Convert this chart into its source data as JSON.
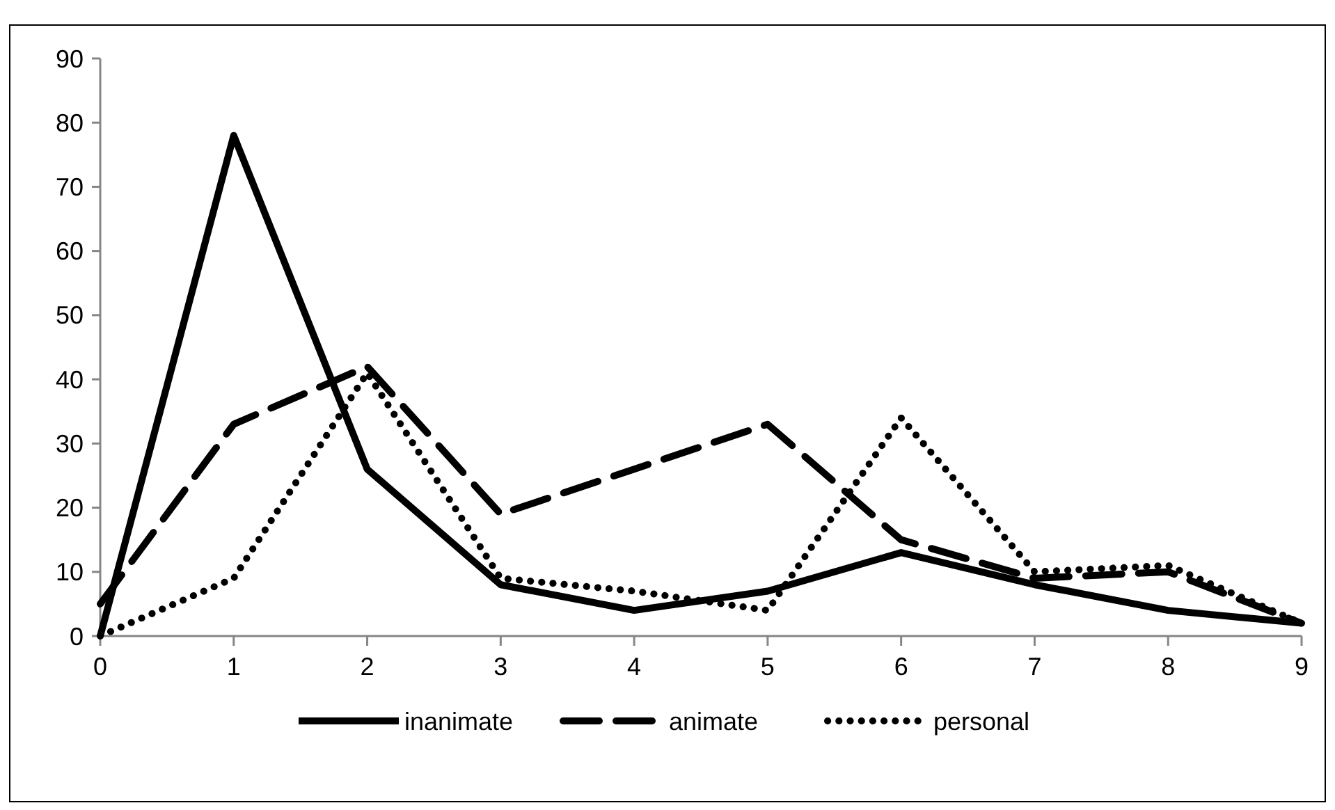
{
  "chart_data": {
    "type": "line",
    "x": [
      0,
      1,
      2,
      3,
      4,
      5,
      6,
      7,
      8,
      9
    ],
    "xlim": [
      0,
      9
    ],
    "xticks": [
      0,
      1,
      2,
      3,
      4,
      5,
      6,
      7,
      8,
      9
    ],
    "ylim": [
      0,
      90
    ],
    "yticks": [
      0,
      10,
      20,
      30,
      40,
      50,
      60,
      70,
      80,
      90
    ],
    "grid": false,
    "legend": "bottom",
    "marker": "none",
    "series": [
      {
        "name": "inanimate",
        "color": "#000000",
        "line_style": "solid",
        "values": [
          0,
          78,
          26,
          8,
          4,
          7,
          13,
          8,
          4,
          2
        ]
      },
      {
        "name": "animate",
        "color": "#000000",
        "line_style": "dashed",
        "values": [
          5,
          33,
          42,
          19,
          26,
          33,
          15,
          9,
          10,
          2
        ]
      },
      {
        "name": "personal",
        "color": "#000000",
        "line_style": "dotted",
        "values": [
          0,
          9,
          41,
          9,
          7,
          4,
          34,
          10,
          11,
          2
        ]
      }
    ]
  }
}
